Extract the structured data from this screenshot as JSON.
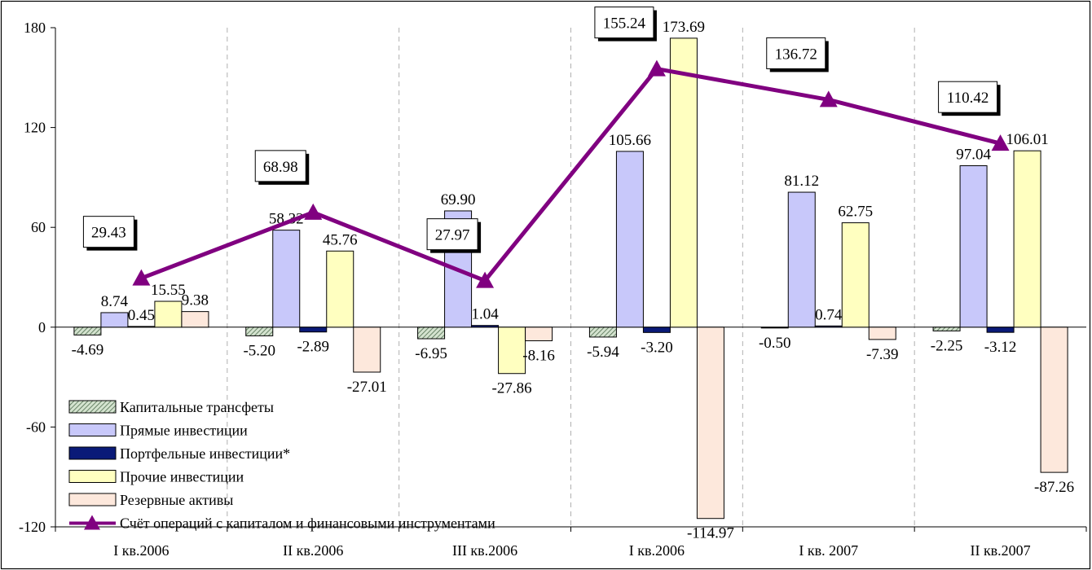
{
  "chart_data": {
    "type": "bar",
    "categories": [
      "I кв.2006",
      "II кв.2006",
      "III кв.2006",
      "I кв.2006",
      "I кв. 2007",
      "II кв.2007"
    ],
    "ylim": [
      -120,
      180
    ],
    "yticks": [
      -120,
      -60,
      0,
      60,
      120,
      180
    ],
    "grid": "vertical dashed separators between categories",
    "legend_position": "bottom-left",
    "series": [
      {
        "name": "Капитальные трансфеты",
        "kind": "bar",
        "color": "#9fb59a",
        "pattern": "hatched",
        "values": [
          -4.69,
          -5.2,
          -6.95,
          -5.94,
          -0.5,
          -2.25
        ],
        "labels": [
          "-4.69",
          "-5.20",
          "-6.95",
          "-5.94",
          "-0.50",
          "-2.25"
        ]
      },
      {
        "name": "Прямые инвестиции",
        "kind": "bar",
        "color": "#c8c8fa",
        "values": [
          8.74,
          58.32,
          69.9,
          105.66,
          81.12,
          97.04
        ],
        "labels": [
          "8.74",
          "58.32",
          "69.90",
          "105.66",
          "81.12",
          "97.04"
        ]
      },
      {
        "name": "Портфельные инвестиции*",
        "kind": "bar",
        "color": "#0a1a78",
        "values": [
          0.45,
          -2.89,
          1.04,
          -3.2,
          0.74,
          -3.12
        ],
        "labels": [
          "0.45",
          "-2.89",
          "1.04",
          "-3.20",
          "0.74",
          "-3.12"
        ]
      },
      {
        "name": "Прочие инвестиции",
        "kind": "bar",
        "color": "#ffffc0",
        "values": [
          15.55,
          45.76,
          -27.86,
          173.69,
          62.75,
          106.01
        ],
        "labels": [
          "15.55",
          "45.76",
          "-27.86",
          "173.69",
          "62.75",
          "106.01"
        ]
      },
      {
        "name": "Резервные активы",
        "kind": "bar",
        "color": "#fde8dc",
        "values": [
          9.38,
          -27.01,
          -8.16,
          -114.97,
          -7.39,
          -87.26
        ],
        "labels": [
          "9.38",
          "-27.01",
          "-8.16",
          "-114.97",
          "-7.39",
          "-87.26"
        ]
      },
      {
        "name": "Счёт операций с капиталом и финансовыми инструментами",
        "kind": "line",
        "color": "#800080",
        "marker": "triangle",
        "values": [
          29.43,
          68.98,
          27.97,
          155.24,
          136.72,
          110.42
        ],
        "labels": [
          "29.43",
          "68.98",
          "27.97",
          "155.24",
          "136.72",
          "110.42"
        ]
      }
    ]
  }
}
